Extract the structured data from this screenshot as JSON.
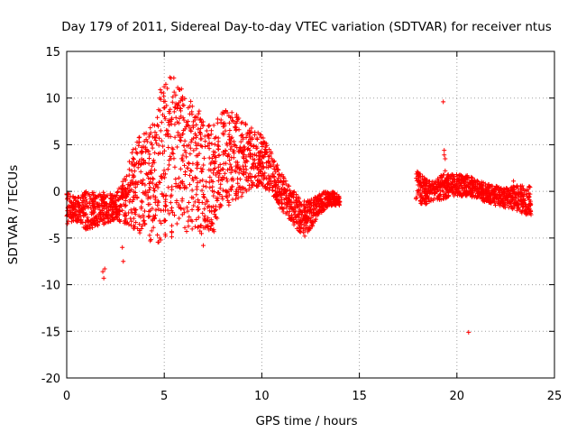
{
  "chart_data": {
    "type": "scatter",
    "title": "Day 179 of 2011, Sidereal Day-to-day VTEC variation (SDTVAR) for receiver ntus",
    "xlabel": "GPS time / hours",
    "ylabel": "SDTVAR / TECUs",
    "xlim": [
      0,
      25
    ],
    "ylim": [
      -20,
      15
    ],
    "xticks": [
      0,
      5,
      10,
      15,
      20,
      25
    ],
    "yticks": [
      -20,
      -15,
      -10,
      -5,
      0,
      5,
      10,
      15
    ],
    "grid": true,
    "marker": "+",
    "color": "#ff0000",
    "series": [
      {
        "name": "SDTVAR",
        "envelope": [
          [
            0.0,
            -3.5,
            0.0
          ],
          [
            0.5,
            -3.2,
            -0.5
          ],
          [
            1.0,
            -4.2,
            0.0
          ],
          [
            1.5,
            -3.8,
            0.0
          ],
          [
            2.0,
            -3.5,
            0.0
          ],
          [
            2.5,
            -3.0,
            -0.5
          ],
          [
            3.0,
            -3.5,
            2.0
          ],
          [
            3.5,
            -4.2,
            5.5
          ],
          [
            4.0,
            -5.0,
            6.5
          ],
          [
            4.5,
            -5.6,
            7.5
          ],
          [
            4.8,
            -5.4,
            11.0
          ],
          [
            5.0,
            -5.0,
            11.5
          ],
          [
            5.3,
            -5.2,
            13.0
          ],
          [
            5.6,
            -4.8,
            12.0
          ],
          [
            6.0,
            -4.5,
            11.0
          ],
          [
            6.5,
            -4.0,
            9.5
          ],
          [
            7.0,
            -5.0,
            8.5
          ],
          [
            7.5,
            -4.5,
            7.0
          ],
          [
            8.0,
            -3.0,
            8.8
          ],
          [
            8.5,
            -1.5,
            8.5
          ],
          [
            9.0,
            -0.5,
            8.0
          ],
          [
            9.5,
            0.5,
            7.0
          ],
          [
            10.0,
            0.5,
            6.0
          ],
          [
            10.5,
            -0.2,
            4.2
          ],
          [
            11.0,
            -2.0,
            2.0
          ],
          [
            11.5,
            -3.2,
            0.5
          ],
          [
            12.0,
            -4.5,
            -1.0
          ],
          [
            12.4,
            -4.5,
            -1.0
          ],
          [
            12.8,
            -3.0,
            -0.5
          ],
          [
            13.2,
            -2.0,
            0.0
          ],
          [
            13.6,
            -1.5,
            0.0
          ],
          [
            14.0,
            -1.5,
            -0.5
          ],
          [
            17.9,
            -1.0,
            2.3
          ],
          [
            18.3,
            -1.5,
            1.5
          ],
          [
            18.8,
            -1.0,
            1.0
          ],
          [
            19.2,
            -1.0,
            1.8
          ],
          [
            19.8,
            -0.5,
            1.8
          ],
          [
            20.5,
            -0.5,
            1.8
          ],
          [
            21.0,
            -0.7,
            1.3
          ],
          [
            21.5,
            -1.2,
            0.8
          ],
          [
            22.0,
            -1.5,
            0.6
          ],
          [
            22.5,
            -1.8,
            0.4
          ],
          [
            23.0,
            -2.0,
            0.6
          ],
          [
            23.5,
            -2.5,
            0.8
          ],
          [
            23.8,
            -2.5,
            0.5
          ]
        ],
        "points": [
          [
            1.85,
            -8.6
          ],
          [
            1.9,
            -9.3
          ],
          [
            1.95,
            -8.3
          ],
          [
            2.85,
            -6.0
          ],
          [
            2.9,
            -7.5
          ],
          [
            5.6,
            7.9
          ],
          [
            7.0,
            -5.8
          ],
          [
            8.0,
            8.5
          ],
          [
            12.2,
            -4.8
          ],
          [
            13.8,
            -1.5
          ],
          [
            17.9,
            -0.8
          ],
          [
            19.3,
            9.6
          ],
          [
            19.35,
            4.4
          ],
          [
            19.35,
            3.9
          ],
          [
            19.4,
            3.5
          ],
          [
            19.4,
            2.2
          ],
          [
            20.6,
            -15.1
          ],
          [
            22.9,
            1.1
          ],
          [
            23.8,
            -2.5
          ]
        ]
      }
    ]
  }
}
